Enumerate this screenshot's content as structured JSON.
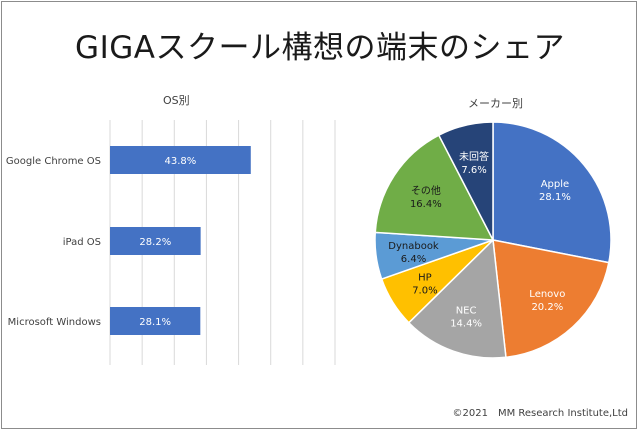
{
  "title": "GIGAスクール構想の端末のシェア",
  "copyright": "©2021　MM Research Institute,Ltd",
  "colors": {
    "bar": "#4472c4",
    "gridline": "#d9d9d9",
    "pie_border": "#ffffff"
  },
  "chart_data": [
    {
      "type": "bar",
      "orientation": "horizontal",
      "title": "OS別",
      "categories": [
        "Google Chrome OS",
        "iPad OS",
        "Microsoft Windows"
      ],
      "values": [
        43.8,
        28.2,
        28.1
      ],
      "value_labels": [
        "43.8%",
        "28.2%",
        "28.1%"
      ],
      "xlim": [
        0,
        70
      ],
      "grid": true
    },
    {
      "type": "pie",
      "title": "メーカー別",
      "slices": [
        {
          "label": "Apple",
          "value": 28.1,
          "value_label": "28.1%",
          "color": "#4472c4",
          "text_color": "#ffffff"
        },
        {
          "label": "Lenovo",
          "value": 20.2,
          "value_label": "20.2%",
          "color": "#ed7d31",
          "text_color": "#ffffff"
        },
        {
          "label": "NEC",
          "value": 14.4,
          "value_label": "14.4%",
          "color": "#a5a5a5",
          "text_color": "#ffffff"
        },
        {
          "label": "HP",
          "value": 7.0,
          "value_label": "7.0%",
          "color": "#ffc000",
          "text_color": "#1a1a1a"
        },
        {
          "label": "Dynabook",
          "value": 6.4,
          "value_label": "6.4%",
          "color": "#5b9bd5",
          "text_color": "#1a1a1a"
        },
        {
          "label": "その他",
          "value": 16.4,
          "value_label": "16.4%",
          "color": "#70ad47",
          "text_color": "#1a1a1a"
        },
        {
          "label": "未回答",
          "value": 7.6,
          "value_label": "7.6%",
          "color": "#264478",
          "text_color": "#ffffff"
        }
      ]
    }
  ]
}
